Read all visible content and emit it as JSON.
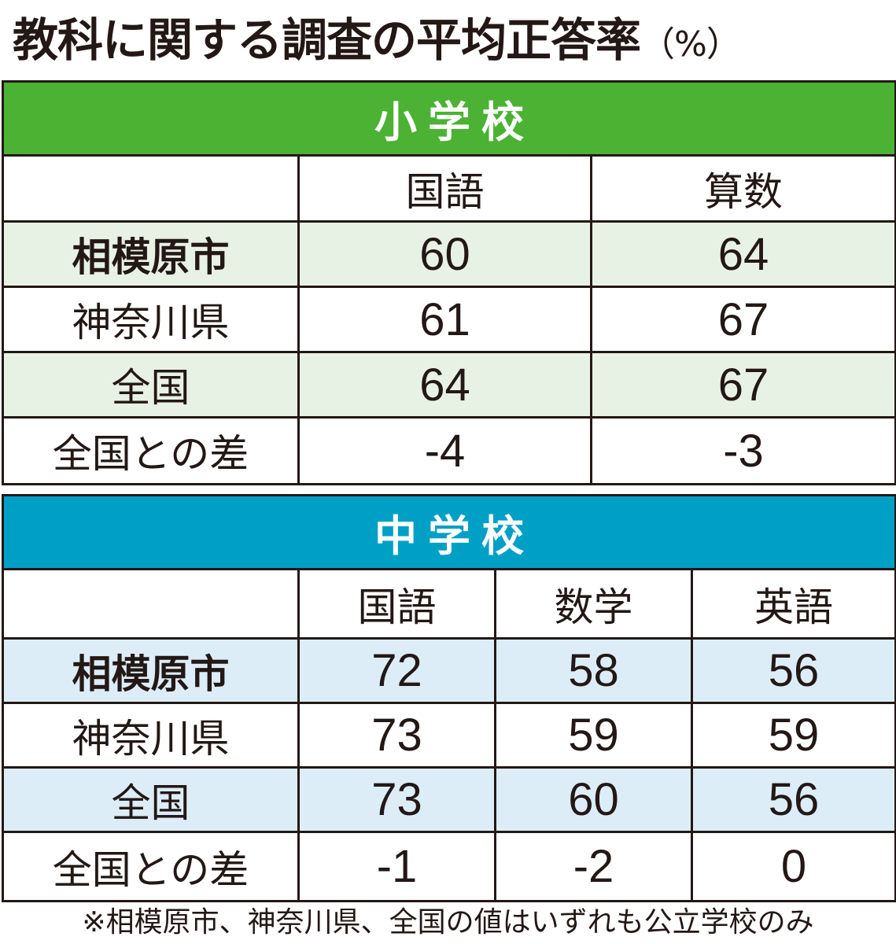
{
  "title": "教科に関する調査の平均正答率",
  "unit": "（%）",
  "elementary": {
    "banner": "小学校",
    "subjects": [
      "国語",
      "算数"
    ],
    "rows": [
      {
        "label": "相模原市",
        "values": [
          "60",
          "64"
        ]
      },
      {
        "label": "神奈川県",
        "values": [
          "61",
          "67"
        ]
      },
      {
        "label": "全国",
        "values": [
          "64",
          "67"
        ]
      },
      {
        "label": "全国との差",
        "values": [
          "-4",
          "-3"
        ]
      }
    ]
  },
  "middle": {
    "banner": "中学校",
    "subjects": [
      "国語",
      "数学",
      "英語"
    ],
    "rows": [
      {
        "label": "相模原市",
        "values": [
          "72",
          "58",
          "56"
        ]
      },
      {
        "label": "神奈川県",
        "values": [
          "73",
          "59",
          "59"
        ]
      },
      {
        "label": "全国",
        "values": [
          "73",
          "60",
          "56"
        ]
      },
      {
        "label": "全国との差",
        "values": [
          "-1",
          "-2",
          "0"
        ]
      }
    ]
  },
  "note": "※相模原市、神奈川県、全国の値はいずれも公立学校のみ"
}
